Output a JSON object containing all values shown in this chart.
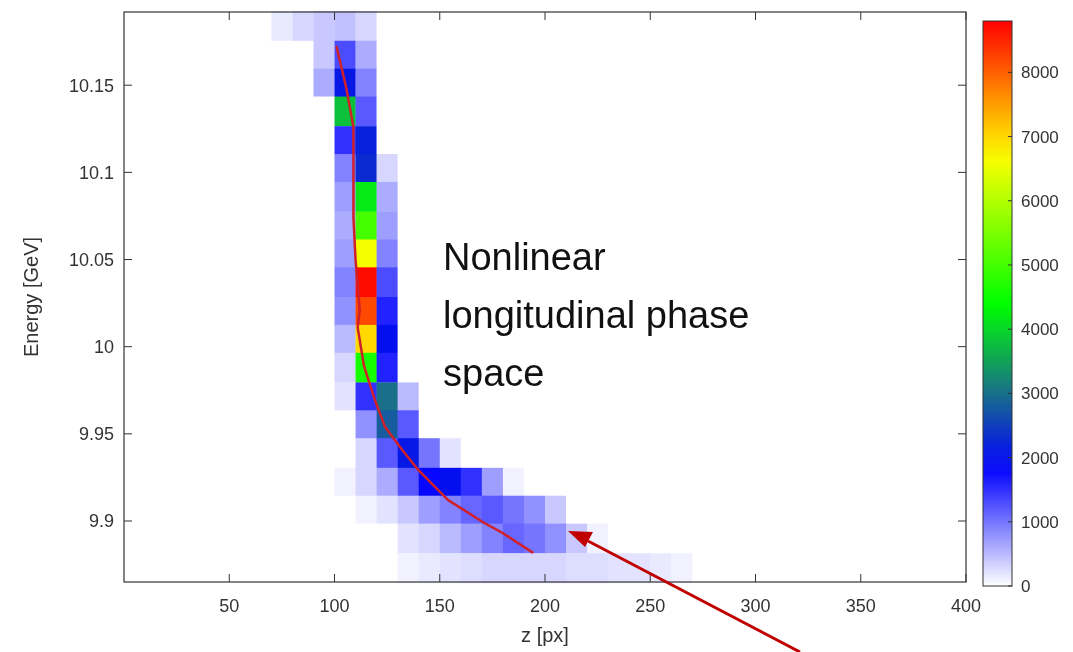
{
  "chart_data": {
    "type": "heatmap",
    "xlabel": "z [px]",
    "ylabel": "Energy [GeV]",
    "xlim": [
      0,
      400
    ],
    "xticks": [
      50,
      100,
      150,
      200,
      250,
      300,
      350,
      400
    ],
    "ylim": [
      9.865,
      10.192
    ],
    "yticks": [
      9.9,
      9.95,
      10,
      10.05,
      10.1,
      10.15
    ],
    "clim": [
      0,
      8800
    ],
    "cticks": [
      0,
      1000,
      2000,
      3000,
      4000,
      5000,
      6000,
      7000,
      8000
    ],
    "x": [
      75,
      85,
      95,
      105,
      115,
      125,
      135,
      145,
      155,
      165,
      175,
      185,
      195,
      205,
      215,
      225,
      235,
      245,
      255,
      265,
      275
    ],
    "y": [
      10.184,
      10.167,
      10.151,
      10.135,
      10.118,
      10.102,
      10.086,
      10.069,
      10.053,
      10.037,
      10.02,
      10.004,
      9.988,
      9.971,
      9.955,
      9.939,
      9.922,
      9.906,
      9.89,
      9.873
    ],
    "cells": [
      [
        150,
        300,
        400,
        450,
        300,
        0,
        0,
        0,
        0,
        0,
        0,
        0,
        0,
        0,
        0,
        0,
        0,
        0,
        0,
        0,
        0
      ],
      [
        0,
        0,
        400,
        1300,
        600,
        0,
        0,
        0,
        0,
        0,
        0,
        0,
        0,
        0,
        0,
        0,
        0,
        0,
        0,
        0,
        0
      ],
      [
        0,
        0,
        600,
        2100,
        900,
        0,
        0,
        0,
        0,
        0,
        0,
        0,
        0,
        0,
        0,
        0,
        0,
        0,
        0,
        0,
        0
      ],
      [
        0,
        0,
        0,
        3800,
        1200,
        0,
        0,
        0,
        0,
        0,
        0,
        0,
        0,
        0,
        0,
        0,
        0,
        0,
        0,
        0,
        0
      ],
      [
        0,
        0,
        0,
        1500,
        2200,
        0,
        0,
        0,
        0,
        0,
        0,
        0,
        0,
        0,
        0,
        0,
        0,
        0,
        0,
        0,
        0
      ],
      [
        0,
        0,
        0,
        900,
        2300,
        300,
        0,
        0,
        0,
        0,
        0,
        0,
        0,
        0,
        0,
        0,
        0,
        0,
        0,
        0,
        0
      ],
      [
        0,
        0,
        0,
        700,
        4200,
        600,
        0,
        0,
        0,
        0,
        0,
        0,
        0,
        0,
        0,
        0,
        0,
        0,
        0,
        0,
        0
      ],
      [
        0,
        0,
        0,
        600,
        5000,
        700,
        0,
        0,
        0,
        0,
        0,
        0,
        0,
        0,
        0,
        0,
        0,
        0,
        0,
        0,
        0
      ],
      [
        0,
        0,
        0,
        700,
        6600,
        900,
        0,
        0,
        0,
        0,
        0,
        0,
        0,
        0,
        0,
        0,
        0,
        0,
        0,
        0,
        0
      ],
      [
        0,
        0,
        0,
        900,
        8700,
        1300,
        0,
        0,
        0,
        0,
        0,
        0,
        0,
        0,
        0,
        0,
        0,
        0,
        0,
        0,
        0
      ],
      [
        0,
        0,
        0,
        800,
        8200,
        1600,
        0,
        0,
        0,
        0,
        0,
        0,
        0,
        0,
        0,
        0,
        0,
        0,
        0,
        0,
        0
      ],
      [
        0,
        0,
        0,
        500,
        7000,
        2000,
        0,
        0,
        0,
        0,
        0,
        0,
        0,
        0,
        0,
        0,
        0,
        0,
        0,
        0,
        0
      ],
      [
        0,
        0,
        0,
        300,
        4600,
        1600,
        0,
        0,
        0,
        0,
        0,
        0,
        0,
        0,
        0,
        0,
        0,
        0,
        0,
        0,
        0
      ],
      [
        0,
        0,
        0,
        200,
        1500,
        3000,
        500,
        0,
        0,
        0,
        0,
        0,
        0,
        0,
        0,
        0,
        0,
        0,
        0,
        0,
        0
      ],
      [
        0,
        0,
        0,
        0,
        800,
        2800,
        1200,
        0,
        0,
        0,
        0,
        0,
        0,
        0,
        0,
        0,
        0,
        0,
        0,
        0,
        0
      ],
      [
        0,
        0,
        0,
        0,
        300,
        1200,
        2100,
        1000,
        200,
        0,
        0,
        0,
        0,
        0,
        0,
        0,
        0,
        0,
        0,
        0,
        0
      ],
      [
        0,
        0,
        0,
        100,
        300,
        600,
        1200,
        1800,
        2000,
        1500,
        700,
        100,
        0,
        0,
        0,
        0,
        0,
        0,
        0,
        0,
        0
      ],
      [
        0,
        0,
        0,
        0,
        100,
        200,
        400,
        700,
        900,
        1100,
        1200,
        1000,
        800,
        400,
        0,
        0,
        0,
        0,
        0,
        0,
        0
      ],
      [
        0,
        0,
        0,
        0,
        0,
        0,
        200,
        300,
        500,
        700,
        900,
        1100,
        1000,
        800,
        400,
        100,
        0,
        0,
        0,
        0,
        0
      ],
      [
        0,
        0,
        0,
        0,
        0,
        0,
        100,
        150,
        200,
        250,
        300,
        300,
        300,
        300,
        250,
        250,
        200,
        200,
        150,
        100,
        0
      ]
    ],
    "series": [
      {
        "type": "line",
        "color": "#d0202a",
        "x": [
          101,
          105.5,
          109,
          109,
          109,
          110,
          112,
          111,
          114,
          119,
          124,
          132,
          140,
          154,
          171,
          180,
          194
        ],
        "values": [
          10.172,
          10.149,
          10.126,
          10.097,
          10.074,
          10.05,
          10.021,
          10.011,
          9.989,
          9.97,
          9.954,
          9.941,
          9.929,
          9.912,
          9.899,
          9.893,
          9.882
        ]
      }
    ],
    "annotations": [
      "Nonlinear longitudinal phase space"
    ],
    "grid": false
  }
}
